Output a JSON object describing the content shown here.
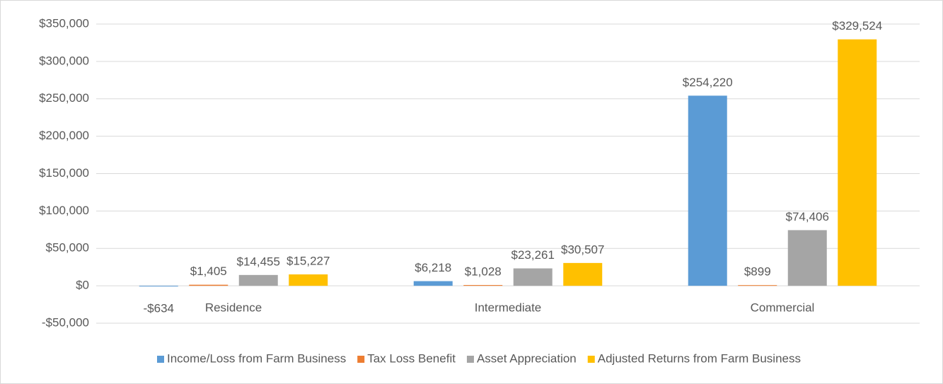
{
  "chart_data": {
    "type": "bar",
    "categories": [
      "Residence",
      "Intermediate",
      "Commercial"
    ],
    "series": [
      {
        "name": "Income/Loss from Farm Business",
        "color": "#5b9bd5",
        "values": [
          -634,
          6218,
          254220
        ],
        "value_labels": [
          "-$634",
          "$6,218",
          "$254,220"
        ]
      },
      {
        "name": "Tax Loss Benefit",
        "color": "#ed7d31",
        "values": [
          1405,
          1028,
          899
        ],
        "value_labels": [
          "$1,405",
          "$1,028",
          "$899"
        ]
      },
      {
        "name": "Asset Appreciation",
        "color": "#a5a5a5",
        "values": [
          14455,
          23261,
          74406
        ],
        "value_labels": [
          "$14,455",
          "$23,261",
          "$74,406"
        ]
      },
      {
        "name": "Adjusted Returns from Farm Business",
        "color": "#ffc000",
        "values": [
          15227,
          30507,
          329524
        ],
        "value_labels": [
          "$15,227",
          "$30,507",
          "$329,524"
        ]
      }
    ],
    "ylim": [
      -50000,
      350000
    ],
    "yticks": [
      {
        "value": -50000,
        "label": "-$50,000"
      },
      {
        "value": 0,
        "label": "$0"
      },
      {
        "value": 50000,
        "label": "$50,000"
      },
      {
        "value": 100000,
        "label": "$100,000"
      },
      {
        "value": 150000,
        "label": "$150,000"
      },
      {
        "value": 200000,
        "label": "$200,000"
      },
      {
        "value": 250000,
        "label": "$250,000"
      },
      {
        "value": 300000,
        "label": "$300,000"
      },
      {
        "value": 350000,
        "label": "$350,000"
      }
    ],
    "grid": true,
    "legend": "bottom"
  }
}
